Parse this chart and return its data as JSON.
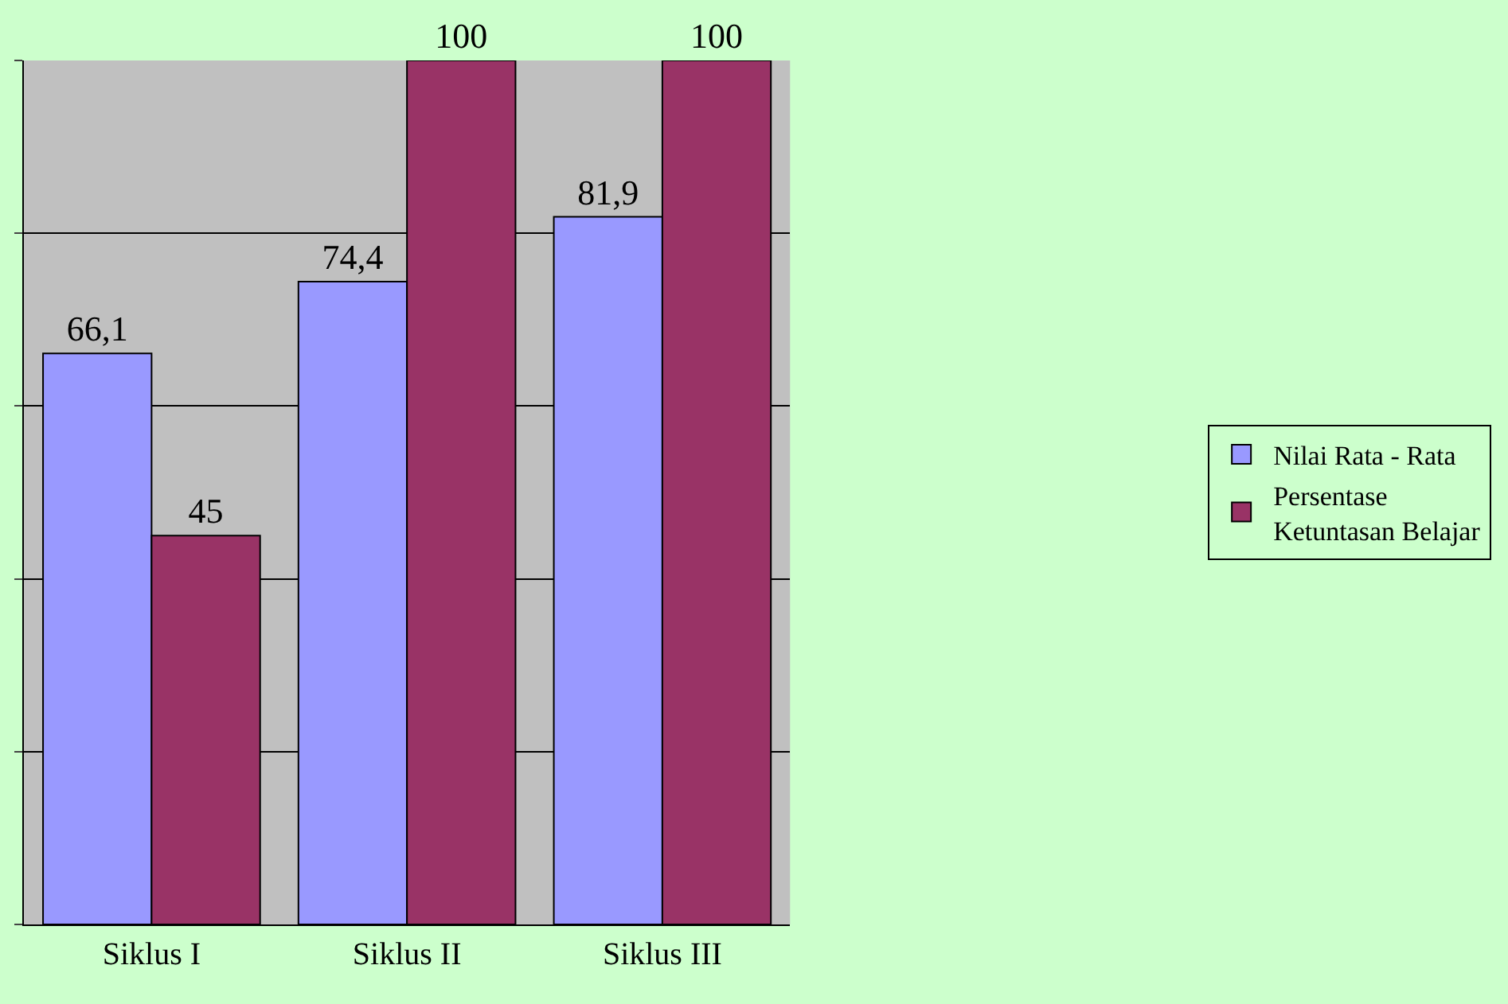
{
  "chart_data": {
    "type": "bar",
    "categories": [
      "Siklus I",
      "Siklus II",
      "Siklus III"
    ],
    "series": [
      {
        "name": "Nilai Rata - Rata",
        "color": "#9999ff",
        "values": [
          66.1,
          74.4,
          81.9
        ],
        "value_labels": [
          "66,1",
          "74,4",
          "81,9"
        ]
      },
      {
        "name": "Persentase\nKetuntasan Belajar",
        "color": "#993366",
        "values": [
          45,
          100,
          100
        ],
        "value_labels": [
          "45",
          "100",
          "100"
        ]
      }
    ],
    "ylim": [
      0,
      100
    ],
    "yticks": [
      {
        "value": 0,
        "label": null
      },
      {
        "value": 20,
        "label": null
      },
      {
        "value": 40,
        "label": null
      },
      {
        "value": 60,
        "label": null
      },
      {
        "value": 80,
        "label": null
      },
      {
        "value": 100,
        "label": null
      }
    ],
    "tick_labels": "x",
    "grid": "y",
    "legend": "right"
  }
}
